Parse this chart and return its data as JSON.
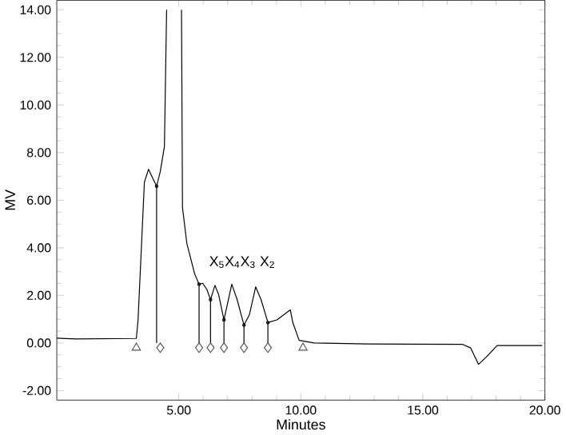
{
  "chart_data": {
    "type": "line",
    "xlabel": "Minutes",
    "ylabel": "MV",
    "xlim": [
      0,
      20
    ],
    "ylim": [
      -2.4,
      14.4
    ],
    "xticks": [
      {
        "value": 5,
        "label": "5.00"
      },
      {
        "value": 10,
        "label": "10.00"
      },
      {
        "value": 15,
        "label": "15.00"
      },
      {
        "value": 20,
        "label": "20.00"
      }
    ],
    "yticks": [
      {
        "value": -2,
        "label": "-2.00"
      },
      {
        "value": 0,
        "label": "0.00"
      },
      {
        "value": 2,
        "label": "2.00"
      },
      {
        "value": 4,
        "label": "4.00"
      },
      {
        "value": 6,
        "label": "6.00"
      },
      {
        "value": 8,
        "label": "8.00"
      },
      {
        "value": 10,
        "label": "10.00"
      },
      {
        "value": 12,
        "label": "12.00"
      },
      {
        "value": 14,
        "label": "14.00"
      }
    ],
    "grid": false,
    "annotations": [
      "X$_{5}$X$_{4}$X$_{3}$ X$_{2}$"
    ],
    "series": [
      {
        "color": "#000000",
        "marker": "none",
        "x": [
          0,
          0.76,
          3.26,
          3.33,
          3.59,
          3.76,
          3.91,
          4.09,
          4.24,
          4.41,
          4.5,
          4.8,
          5.11,
          5.15,
          5.33,
          5.65,
          5.83,
          5.98,
          6.15,
          6.3,
          6.48,
          6.63,
          6.85,
          7.17,
          7.39,
          7.67,
          7.89,
          8.15,
          8.37,
          8.65,
          9.02,
          9.57,
          9.67,
          9.93,
          10.54,
          12.72,
          16.63,
          16.96,
          17.28,
          17.61,
          18.04,
          19.89
        ],
        "values": [
          0.2,
          0.17,
          0.19,
          0.97,
          6.76,
          7.3,
          6.97,
          6.59,
          7.2,
          8.26,
          14.0,
          null,
          14.0,
          5.69,
          4.18,
          2.9,
          2.47,
          2.51,
          2.25,
          1.82,
          2.42,
          2.04,
          0.97,
          2.47,
          1.82,
          0.75,
          1.18,
          2.36,
          1.82,
          0.86,
          0.97,
          1.39,
          0.86,
          0.11,
          0,
          -0.04,
          -0.06,
          -0.21,
          -0.9,
          -0.58,
          -0.11,
          -0.11
        ]
      },
      {
        "type": "lollipop",
        "color": "#000000",
        "marker": "circle",
        "x": [
          4.09,
          5.83,
          6.3,
          6.85,
          7.67,
          8.65
        ],
        "values": [
          6.59,
          2.47,
          1.82,
          0.97,
          0.75,
          0.86
        ]
      },
      {
        "type": "scatter",
        "color": "#555555",
        "marker": "triangle",
        "x": [
          3.26,
          10.09
        ],
        "values": [
          -0.2,
          -0.2
        ]
      },
      {
        "type": "scatter",
        "color": "#555555",
        "marker": "diamond",
        "x": [
          4.24,
          5.83,
          6.3,
          6.85,
          7.67,
          8.65
        ],
        "values": [
          -0.2,
          -0.2,
          -0.2,
          -0.2,
          -0.2,
          -0.2
        ]
      }
    ]
  }
}
